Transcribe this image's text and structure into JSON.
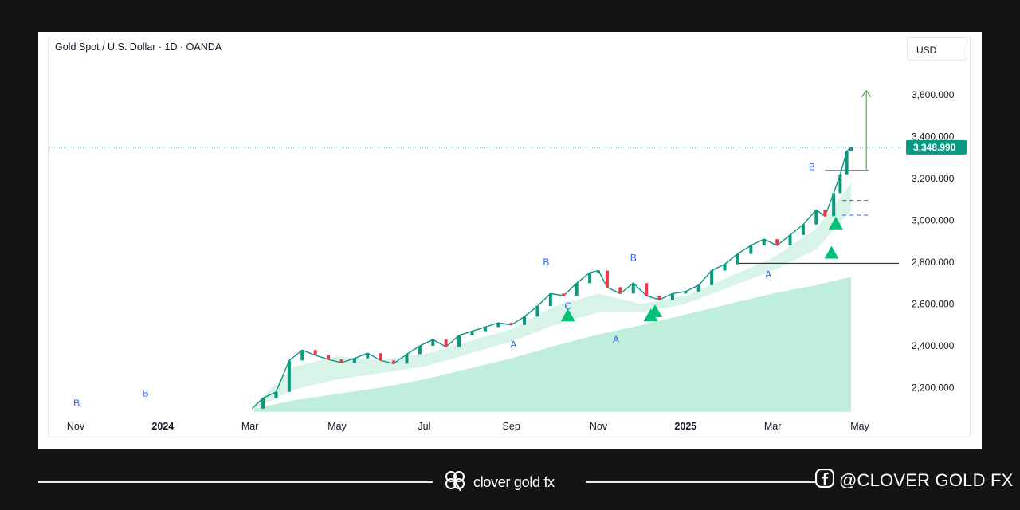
{
  "header": {
    "title": "Gold Spot / U.S. Dollar · 1D · OANDA",
    "currency": "USD"
  },
  "chart_data": {
    "type": "line",
    "title": "Gold Spot / U.S. Dollar · 1D · OANDA",
    "ylim": [
      2080,
      3720
    ],
    "y_ticks": [
      {
        "value": 3600,
        "label": "3,600.000"
      },
      {
        "value": 3400,
        "label": "3,400.000"
      },
      {
        "value": 3200,
        "label": "3,200.000"
      },
      {
        "value": 3000,
        "label": "3,000.000"
      },
      {
        "value": 2800,
        "label": "2,800.000"
      },
      {
        "value": 2600,
        "label": "2,600.000"
      },
      {
        "value": 2400,
        "label": "2,400.000"
      },
      {
        "value": 2200,
        "label": "2,200.000"
      }
    ],
    "x_ticks": [
      {
        "t": 0,
        "label": "Nov",
        "bold": false
      },
      {
        "t": 2,
        "label": "2024",
        "bold": true
      },
      {
        "t": 4,
        "label": "Mar",
        "bold": false
      },
      {
        "t": 6,
        "label": "May",
        "bold": false
      },
      {
        "t": 8,
        "label": "Jul",
        "bold": false
      },
      {
        "t": 10,
        "label": "Sep",
        "bold": false
      },
      {
        "t": 12,
        "label": "Nov",
        "bold": false
      },
      {
        "t": 14,
        "label": "2025",
        "bold": true
      },
      {
        "t": 16,
        "label": "Mar",
        "bold": false
      },
      {
        "t": 18,
        "label": "May",
        "bold": false
      }
    ],
    "x_range": [
      0,
      18
    ],
    "price_line": {
      "value": 3348.99,
      "label": "3,348.990",
      "color": "#089981"
    },
    "series": [
      {
        "type": "line",
        "color": "#089981",
        "x": [
          4.05,
          4.3,
          4.6,
          4.9,
          5.2,
          5.5,
          5.8,
          6.1,
          6.4,
          6.7,
          7.0,
          7.3,
          7.6,
          7.9,
          8.2,
          8.5,
          8.8,
          9.1,
          9.4,
          9.7,
          10.0,
          10.3,
          10.6,
          10.9,
          11.2,
          11.5,
          11.8,
          12.0,
          12.2,
          12.5,
          12.8,
          13.1,
          13.4,
          13.7,
          14.0,
          14.3,
          14.6,
          14.9,
          15.2,
          15.5,
          15.8,
          16.1,
          16.4,
          16.7,
          17.0,
          17.2,
          17.4,
          17.55,
          17.7,
          17.8
        ],
        "values": [
          2100,
          2150,
          2180,
          2330,
          2380,
          2355,
          2335,
          2320,
          2340,
          2365,
          2330,
          2315,
          2360,
          2400,
          2430,
          2395,
          2450,
          2470,
          2490,
          2510,
          2500,
          2540,
          2590,
          2650,
          2640,
          2700,
          2750,
          2760,
          2680,
          2650,
          2700,
          2640,
          2620,
          2650,
          2660,
          2690,
          2760,
          2790,
          2840,
          2880,
          2910,
          2880,
          2930,
          2980,
          3050,
          3020,
          3130,
          3220,
          3330,
          3349
        ]
      }
    ],
    "bands": [
      {
        "name": "outer",
        "color": "#bfeedd",
        "upper": [
          [
            4.1,
            2100
          ],
          [
            5,
            2140
          ],
          [
            6,
            2170
          ],
          [
            7,
            2200
          ],
          [
            8,
            2240
          ],
          [
            9,
            2290
          ],
          [
            10,
            2340
          ],
          [
            11,
            2400
          ],
          [
            12,
            2455
          ],
          [
            13,
            2500
          ],
          [
            14,
            2550
          ],
          [
            15,
            2600
          ],
          [
            16,
            2650
          ],
          [
            17,
            2690
          ],
          [
            17.8,
            2730
          ]
        ],
        "lower_value": 2085
      },
      {
        "name": "cloud",
        "color": "#d8f3e8",
        "upper": [
          [
            4.1,
            2120
          ],
          [
            5,
            2300
          ],
          [
            6,
            2350
          ],
          [
            7,
            2330
          ],
          [
            8,
            2360
          ],
          [
            9,
            2420
          ],
          [
            10,
            2480
          ],
          [
            11,
            2590
          ],
          [
            12,
            2650
          ],
          [
            13,
            2600
          ],
          [
            14,
            2640
          ],
          [
            15,
            2730
          ],
          [
            16,
            2820
          ],
          [
            17,
            2960
          ],
          [
            17.8,
            3180
          ]
        ],
        "lower": [
          [
            4.1,
            2100
          ],
          [
            5,
            2190
          ],
          [
            6,
            2240
          ],
          [
            7,
            2270
          ],
          [
            8,
            2300
          ],
          [
            9,
            2360
          ],
          [
            10,
            2420
          ],
          [
            11,
            2500
          ],
          [
            12,
            2560
          ],
          [
            13,
            2560
          ],
          [
            14,
            2600
          ],
          [
            15,
            2680
          ],
          [
            16,
            2760
          ],
          [
            17,
            2860
          ],
          [
            17.8,
            3050
          ]
        ]
      }
    ],
    "labels": [
      {
        "t": 0.02,
        "value": 2110,
        "text": "B",
        "color": "#2962ff"
      },
      {
        "t": 1.6,
        "value": 2158,
        "text": "B",
        "color": "#2962ff"
      },
      {
        "t": 10.05,
        "value": 2390,
        "text": "A",
        "color": "#2962ff"
      },
      {
        "t": 10.8,
        "value": 2785,
        "text": "B",
        "color": "#2962ff"
      },
      {
        "t": 11.3,
        "value": 2575,
        "text": "C",
        "color": "#2962ff"
      },
      {
        "t": 12.4,
        "value": 2415,
        "text": "A",
        "color": "#2962ff"
      },
      {
        "t": 12.8,
        "value": 2805,
        "text": "B",
        "color": "#2962ff"
      },
      {
        "t": 15.9,
        "value": 2725,
        "text": "A",
        "color": "#2962ff"
      },
      {
        "t": 16.9,
        "value": 3240,
        "text": "B",
        "color": "#2962ff"
      }
    ],
    "signals": [
      {
        "t": 11.3,
        "value": 2540
      },
      {
        "t": 13.2,
        "value": 2540
      },
      {
        "t": 13.3,
        "value": 2560
      },
      {
        "t": 17.35,
        "value": 2840
      },
      {
        "t": 17.45,
        "value": 2980
      }
    ],
    "levels": [
      {
        "value": 3238,
        "from": 17.2,
        "to": 18.2,
        "style": "solid"
      },
      {
        "value": 3095,
        "from": 17.6,
        "to": 18.2,
        "style": "dashed"
      },
      {
        "value": 3025,
        "from": 17.6,
        "to": 18.2,
        "style": "dashed"
      },
      {
        "value": 2795,
        "from": 15.2,
        "to": 18.9,
        "style": "solid"
      }
    ],
    "target_arrow": {
      "t": 18.15,
      "from": 3235,
      "to": 3620,
      "color": "#4caf50"
    },
    "grid": false,
    "legend": "none"
  },
  "footer": {
    "brand": "clover gold fx",
    "social": "@CLOVER GOLD FX"
  },
  "colors": {
    "background": "#141414",
    "up": "#089981",
    "down": "#f23645",
    "accent": "#4caf50"
  }
}
